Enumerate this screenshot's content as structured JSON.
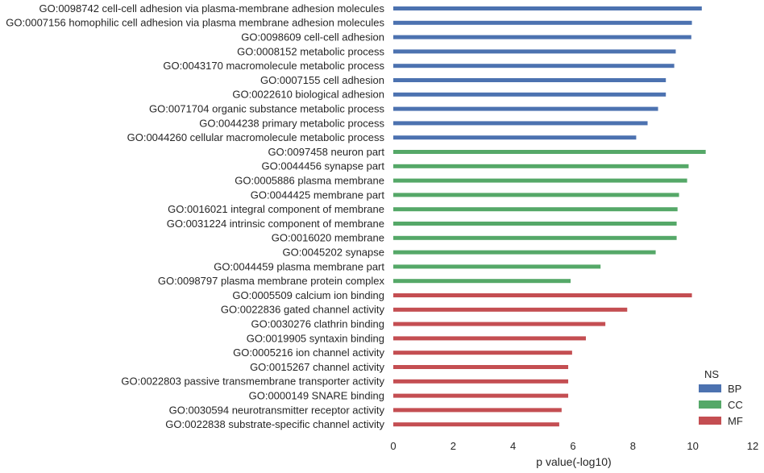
{
  "chart_data": {
    "type": "bar",
    "orientation": "horizontal",
    "xlabel": "p value(-log10)",
    "xlim": [
      0,
      12
    ],
    "xticks": [
      0,
      2,
      4,
      6,
      8,
      10,
      12
    ],
    "grid": false,
    "legend": {
      "title": "NS",
      "placement": "bottom-right",
      "entries": [
        {
          "name": "BP",
          "color": "#4c72b0"
        },
        {
          "name": "CC",
          "color": "#55a868"
        },
        {
          "name": "MF",
          "color": "#c44e52"
        }
      ]
    },
    "bars": [
      {
        "label": "GO:0098742 cell-cell adhesion via plasma-membrane adhesion molecules",
        "value": 10.3,
        "ns": "BP"
      },
      {
        "label": "GO:0007156 homophilic cell adhesion via plasma membrane adhesion molecules",
        "value": 9.97,
        "ns": "BP"
      },
      {
        "label": "GO:0098609 cell-cell adhesion",
        "value": 9.95,
        "ns": "BP"
      },
      {
        "label": "GO:0008152 metabolic process",
        "value": 9.43,
        "ns": "BP"
      },
      {
        "label": "GO:0043170 macromolecule metabolic process",
        "value": 9.38,
        "ns": "BP"
      },
      {
        "label": "GO:0007155 cell adhesion",
        "value": 9.1,
        "ns": "BP"
      },
      {
        "label": "GO:0022610 biological adhesion",
        "value": 9.1,
        "ns": "BP"
      },
      {
        "label": "GO:0071704 organic substance metabolic process",
        "value": 8.84,
        "ns": "BP"
      },
      {
        "label": "GO:0044238 primary metabolic process",
        "value": 8.49,
        "ns": "BP"
      },
      {
        "label": "GO:0044260 cellular macromolecule metabolic process",
        "value": 8.11,
        "ns": "BP"
      },
      {
        "label": "GO:0097458 neuron part",
        "value": 10.43,
        "ns": "CC"
      },
      {
        "label": "GO:0044456 synapse part",
        "value": 9.86,
        "ns": "CC"
      },
      {
        "label": "GO:0005886 plasma membrane",
        "value": 9.81,
        "ns": "CC"
      },
      {
        "label": "GO:0044425 membrane part",
        "value": 9.54,
        "ns": "CC"
      },
      {
        "label": "GO:0016021 integral component of membrane",
        "value": 9.49,
        "ns": "CC"
      },
      {
        "label": "GO:0031224 intrinsic component of membrane",
        "value": 9.46,
        "ns": "CC"
      },
      {
        "label": "GO:0016020 membrane",
        "value": 9.46,
        "ns": "CC"
      },
      {
        "label": "GO:0045202 synapse",
        "value": 8.76,
        "ns": "CC"
      },
      {
        "label": "GO:0044459 plasma membrane part",
        "value": 6.92,
        "ns": "CC"
      },
      {
        "label": "GO:0098797 plasma membrane protein complex",
        "value": 5.92,
        "ns": "CC"
      },
      {
        "label": "GO:0005509 calcium ion binding",
        "value": 9.97,
        "ns": "MF"
      },
      {
        "label": "GO:0022836 gated channel activity",
        "value": 7.81,
        "ns": "MF"
      },
      {
        "label": "GO:0030276 clathrin binding",
        "value": 7.08,
        "ns": "MF"
      },
      {
        "label": "GO:0019905 syntaxin binding",
        "value": 6.43,
        "ns": "MF"
      },
      {
        "label": "GO:0005216 ion channel activity",
        "value": 5.97,
        "ns": "MF"
      },
      {
        "label": "GO:0015267 channel activity",
        "value": 5.84,
        "ns": "MF"
      },
      {
        "label": "GO:0022803 passive transmembrane transporter activity",
        "value": 5.84,
        "ns": "MF"
      },
      {
        "label": "GO:0000149 SNARE binding",
        "value": 5.84,
        "ns": "MF"
      },
      {
        "label": "GO:0030594 neurotransmitter receptor activity",
        "value": 5.62,
        "ns": "MF"
      },
      {
        "label": "GO:0022838 substrate-specific channel activity",
        "value": 5.54,
        "ns": "MF"
      }
    ]
  }
}
